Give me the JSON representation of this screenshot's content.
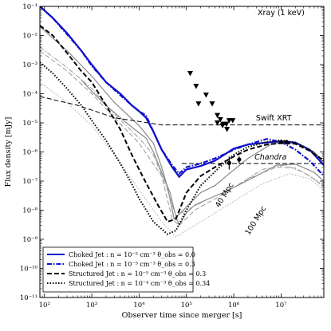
{
  "chart_data": {
    "type": "line",
    "title": "Xray (1 keV)",
    "xlabel": "Observer time since merger [s]",
    "ylabel": "Flux density [mJy]",
    "xscale": "log",
    "yscale": "log",
    "xlim": [
      80,
      80000000
    ],
    "ylim": [
      1e-11,
      0.1
    ],
    "x_ticks": [
      {
        "value": 100,
        "label": "10²"
      },
      {
        "value": 1000,
        "label": "10³"
      },
      {
        "value": 10000,
        "label": "10⁴"
      },
      {
        "value": 100000,
        "label": "10⁵"
      },
      {
        "value": 1000000,
        "label": "10⁶"
      },
      {
        "value": 10000000,
        "label": "10⁷"
      }
    ],
    "y_ticks": [
      {
        "value": 1e-11,
        "label": "10⁻¹¹"
      },
      {
        "value": 1e-10,
        "label": "10⁻¹⁰"
      },
      {
        "value": 1e-09,
        "label": "10⁻⁹"
      },
      {
        "value": 1e-08,
        "label": "10⁻⁸"
      },
      {
        "value": 1e-07,
        "label": "10⁻⁷"
      },
      {
        "value": 1e-06,
        "label": "10⁻⁶"
      },
      {
        "value": 1e-05,
        "label": "10⁻⁵"
      },
      {
        "value": 0.0001,
        "label": "10⁻⁴"
      },
      {
        "value": 0.001,
        "label": "10⁻³"
      },
      {
        "value": 0.01,
        "label": "10⁻²"
      },
      {
        "value": 0.1,
        "label": "10⁻¹"
      }
    ],
    "series": [
      {
        "name": "Choked Jet : n = 10⁻⁵ cm⁻³ θ_obs = 0.0",
        "color": "#1010cc",
        "style": "solid",
        "width": 2.2,
        "points": [
          [
            80,
            0.1
          ],
          [
            150,
            0.04
          ],
          [
            300,
            0.012
          ],
          [
            600,
            0.003
          ],
          [
            1000,
            0.001
          ],
          [
            2000,
            0.00025
          ],
          [
            4000,
            0.0001
          ],
          [
            7000,
            4e-05
          ],
          [
            10000,
            2.5e-05
          ],
          [
            14000,
            1.5e-05
          ],
          [
            20000,
            5e-06
          ],
          [
            30000,
            1.2e-06
          ],
          [
            50000,
            3e-07
          ],
          [
            70000,
            1.4e-07
          ],
          [
            100000,
            2.5e-07
          ],
          [
            200000,
            3.3e-07
          ],
          [
            400000,
            5e-07
          ],
          [
            700000,
            9e-07
          ],
          [
            1000000,
            1.3e-06
          ],
          [
            2000000,
            1.8e-06
          ],
          [
            5000000,
            2.1e-06
          ],
          [
            10000000,
            2.3e-06
          ],
          [
            20000000,
            2.1e-06
          ],
          [
            40000000,
            1.2e-06
          ],
          [
            80000000,
            3.5e-07
          ]
        ]
      },
      {
        "name": "Choked Jet : n = 10⁻⁵ cm⁻³ θ_obs = 0.3",
        "color": "#1010cc",
        "style": "dashdot",
        "width": 2.2,
        "points": [
          [
            80,
            0.1
          ],
          [
            150,
            0.04
          ],
          [
            300,
            0.011
          ],
          [
            600,
            0.003
          ],
          [
            1000,
            0.0009
          ],
          [
            2000,
            0.00025
          ],
          [
            4000,
            9e-05
          ],
          [
            7000,
            4e-05
          ],
          [
            10000,
            2.5e-05
          ],
          [
            14000,
            1.8e-05
          ],
          [
            20000,
            5e-06
          ],
          [
            30000,
            1.2e-06
          ],
          [
            50000,
            3.5e-07
          ],
          [
            70000,
            1.8e-07
          ],
          [
            100000,
            3e-07
          ],
          [
            200000,
            4e-07
          ],
          [
            400000,
            6e-07
          ],
          [
            700000,
            9e-07
          ],
          [
            1000000,
            1.2e-06
          ],
          [
            2000000,
            1.8e-06
          ],
          [
            5000000,
            2.8e-06
          ],
          [
            10000000,
            2.2e-06
          ],
          [
            20000000,
            1.2e-06
          ],
          [
            40000000,
            5e-07
          ],
          [
            80000000,
            1.5e-07
          ]
        ]
      },
      {
        "name": "Structured Jet : n = 10⁻⁵ cm⁻³ θ_obs = 0.3",
        "color": "#000000",
        "style": "dashed",
        "width": 2,
        "points": [
          [
            80,
            0.022
          ],
          [
            150,
            0.01
          ],
          [
            300,
            0.0025
          ],
          [
            600,
            0.0006
          ],
          [
            1000,
            0.00025
          ],
          [
            2000,
            4e-05
          ],
          [
            4000,
            6e-06
          ],
          [
            7000,
            8e-07
          ],
          [
            10000,
            2.5e-07
          ],
          [
            15000,
            7e-08
          ],
          [
            25000,
            1.5e-08
          ],
          [
            40000,
            4e-09
          ],
          [
            60000,
            5e-09
          ],
          [
            100000,
            4e-08
          ],
          [
            200000,
            1.5e-07
          ],
          [
            400000,
            3e-07
          ],
          [
            1000000,
            7e-07
          ],
          [
            2000000,
            1.2e-06
          ],
          [
            5000000,
            1.8e-06
          ],
          [
            10000000,
            2e-06
          ],
          [
            20000000,
            1.9e-06
          ],
          [
            40000000,
            1.1e-06
          ],
          [
            80000000,
            5e-07
          ]
        ]
      },
      {
        "name": "Structured Jet : n = 10⁻⁴ cm⁻³ θ_obs = 0.34",
        "color": "#000000",
        "style": "dotted",
        "width": 2,
        "points": [
          [
            80,
            0.0012
          ],
          [
            150,
            0.0005
          ],
          [
            300,
            0.00015
          ],
          [
            600,
            4e-05
          ],
          [
            1000,
            1.2e-05
          ],
          [
            2000,
            2.5e-06
          ],
          [
            4000,
            4e-07
          ],
          [
            7000,
            8e-08
          ],
          [
            10000,
            2.5e-08
          ],
          [
            20000,
            4e-09
          ],
          [
            40000,
            1.5e-09
          ],
          [
            60000,
            2e-09
          ],
          [
            100000,
            1e-08
          ],
          [
            200000,
            7e-08
          ],
          [
            500000,
            3e-07
          ],
          [
            1000000,
            8e-07
          ],
          [
            2000000,
            1.5e-06
          ],
          [
            5000000,
            2.2e-06
          ],
          [
            10000000,
            2.5e-06
          ],
          [
            20000000,
            2.1e-06
          ],
          [
            40000000,
            1.2e-06
          ],
          [
            80000000,
            5e-07
          ]
        ]
      }
    ],
    "faint_lines": [
      {
        "color": "#888888",
        "style": "solid",
        "width": 1.2,
        "points": [
          [
            600,
            0.0003
          ],
          [
            1000,
            0.00012
          ],
          [
            2000,
            4e-05
          ],
          [
            4000,
            1.5e-05
          ],
          [
            8000,
            6e-06
          ],
          [
            14000,
            3e-06
          ],
          [
            20000,
            1e-06
          ],
          [
            30000,
            2e-07
          ],
          [
            45000,
            4e-08
          ],
          [
            60000,
            6e-09
          ],
          [
            70000,
            3e-09
          ],
          [
            100000,
            8e-09
          ],
          [
            150000,
            1.5e-08
          ],
          [
            300000,
            2.5e-08
          ],
          [
            600000,
            4e-08
          ],
          [
            1000000,
            6e-08
          ],
          [
            3000000,
            1.5e-07
          ],
          [
            8000000,
            3.5e-07
          ],
          [
            20000000,
            3.8e-07
          ],
          [
            50000000,
            2e-07
          ],
          [
            80000000,
            1e-07
          ]
        ]
      },
      {
        "color": "#888888",
        "style": "solid",
        "width": 1.2,
        "points": [
          [
            80,
            0.02
          ],
          [
            300,
            0.003
          ],
          [
            1000,
            0.0004
          ],
          [
            3000,
            5e-05
          ],
          [
            10000,
            8e-06
          ],
          [
            20000,
            2e-06
          ],
          [
            30000,
            3e-07
          ],
          [
            40000,
            6e-08
          ],
          [
            55000,
            5e-09
          ],
          [
            80000,
            9e-09
          ],
          [
            200000,
            4e-08
          ],
          [
            400000,
            7e-08
          ],
          [
            700000,
            1.5e-07
          ],
          [
            2000000,
            6e-07
          ],
          [
            6000000,
            1.8e-06
          ],
          [
            12000000,
            2.2e-06
          ],
          [
            25000000,
            1.8e-06
          ],
          [
            50000000,
            1e-06
          ],
          [
            80000000,
            4e-07
          ]
        ]
      },
      {
        "color": "#999999",
        "style": "dashdot",
        "width": 1,
        "points": [
          [
            80,
            0.004
          ],
          [
            300,
            0.0008
          ],
          [
            1000,
            0.00015
          ],
          [
            3000,
            2e-05
          ],
          [
            10000,
            3e-06
          ],
          [
            20000,
            8e-07
          ],
          [
            40000,
            5e-08
          ],
          [
            60000,
            6e-09
          ],
          [
            100000,
            1e-08
          ],
          [
            300000,
            2.5e-08
          ],
          [
            1000000,
            6e-08
          ],
          [
            4000000,
            2.5e-07
          ],
          [
            12000000,
            3.5e-07
          ],
          [
            30000000,
            2e-07
          ],
          [
            80000000,
            7e-08
          ]
        ]
      },
      {
        "color": "#999999",
        "style": "dashed",
        "width": 1,
        "points": [
          [
            80,
            0.003
          ],
          [
            300,
            0.0006
          ],
          [
            1000,
            0.0001
          ],
          [
            3000,
            1.5e-05
          ],
          [
            10000,
            2e-06
          ],
          [
            30000,
            1.5e-07
          ],
          [
            50000,
            5e-09
          ],
          [
            70000,
            3e-09
          ],
          [
            150000,
            1e-08
          ],
          [
            500000,
            3e-08
          ],
          [
            2000000,
            1.2e-07
          ],
          [
            8000000,
            3e-07
          ],
          [
            20000000,
            2.8e-07
          ],
          [
            50000000,
            1.2e-07
          ],
          [
            80000000,
            6e-08
          ]
        ]
      },
      {
        "color": "#aaaaaa",
        "style": "dotted",
        "width": 1,
        "points": [
          [
            80,
            0.00025
          ],
          [
            300,
            5e-05
          ],
          [
            1000,
            8e-06
          ],
          [
            3000,
            8e-07
          ],
          [
            10000,
            5e-08
          ],
          [
            30000,
            4e-09
          ],
          [
            60000,
            1.2e-09
          ],
          [
            100000,
            2e-09
          ],
          [
            300000,
            6e-09
          ],
          [
            1000000,
            2e-08
          ],
          [
            4000000,
            8e-08
          ],
          [
            15000000,
            1.8e-07
          ],
          [
            40000000,
            1.2e-07
          ],
          [
            80000000,
            5e-08
          ]
        ]
      }
    ],
    "reference_lines": [
      {
        "label": "Swift XRT",
        "points": [
          [
            80,
            8e-05
          ],
          [
            500,
            4e-05
          ],
          [
            3000,
            1.5e-05
          ],
          [
            30000,
            8.5e-06
          ],
          [
            80000000,
            8.5e-06
          ]
        ]
      },
      {
        "label": "Chandra",
        "points": [
          [
            80000,
            4e-07
          ],
          [
            80000000,
            4e-07
          ]
        ]
      }
    ],
    "upper_limits": [
      [
        120000,
        0.0005
      ],
      [
        160000,
        0.00018
      ],
      [
        260000,
        9e-05
      ],
      [
        350000,
        4.5e-05
      ],
      [
        180000,
        4.5e-05
      ],
      [
        450000,
        1.8e-05
      ],
      [
        450000,
        1e-05
      ],
      [
        520000,
        1.3e-05
      ],
      [
        600000,
        9e-06
      ],
      [
        700000,
        9e-06
      ],
      [
        800000,
        1.2e-05
      ],
      [
        950000,
        1.2e-05
      ],
      [
        720000,
        6e-06
      ],
      [
        580000,
        8e-06
      ]
    ],
    "detections": [
      {
        "x": 800000,
        "y": 4.2e-07,
        "yerr_lo": 2.5e-07,
        "yerr_hi": 7e-07
      },
      {
        "x": 1300000,
        "y": 5.5e-07,
        "yerr_lo": 4e-07,
        "yerr_hi": 7e-07
      },
      {
        "x": 10000000,
        "y": 2.2e-06,
        "yerr_lo": 1.9e-06,
        "yerr_hi": 2.5e-06
      },
      {
        "x": 13000000,
        "y": 2.2e-06,
        "yerr_lo": 1.9e-06,
        "yerr_hi": 2.5e-06
      }
    ],
    "annotations": [
      {
        "text": "Xray (1 keV)",
        "x": 10000000,
        "y": 0.05,
        "color": "#000000"
      },
      {
        "text": "Swift XRT",
        "x": 7000000,
        "y": 1.2e-05,
        "color": "#000000"
      },
      {
        "text": "Chandra",
        "x": 6000000,
        "y": 5.5e-07,
        "color": "#000000",
        "italic": true
      },
      {
        "text": "40 Mpc",
        "x": 700000,
        "y": 3e-08,
        "color": "#333333",
        "rotate": -58
      },
      {
        "text": "100 Mpc",
        "x": 3200000,
        "y": 4e-09,
        "color": "#999999",
        "rotate": -58
      }
    ],
    "legend": {
      "placement": "lower-left",
      "entries": [
        {
          "label": "Choked Jet : n = 10⁻⁵ cm⁻³ θ_obs = 0.0",
          "color": "#1010cc",
          "style": "solid"
        },
        {
          "label": "Choked Jet : n = 10⁻⁵ cm⁻³ θ_obs = 0.3",
          "color": "#1010cc",
          "style": "dashdot"
        },
        {
          "label": "Structured Jet : n = 10⁻⁵ cm⁻³ θ_obs = 0.3",
          "color": "#000000",
          "style": "dashed"
        },
        {
          "label": "Structured Jet : n = 10⁻⁴ cm⁻³ θ_obs = 0.34",
          "color": "#000000",
          "style": "dotted"
        }
      ]
    },
    "grid": false
  }
}
